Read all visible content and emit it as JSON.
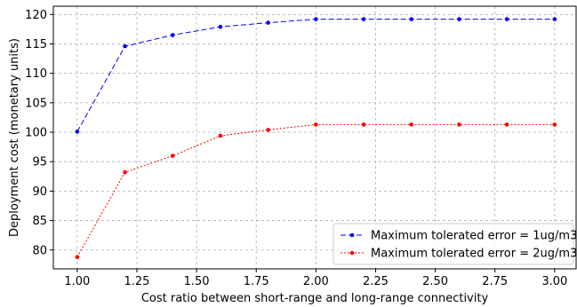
{
  "chart_data": {
    "type": "line",
    "title": "",
    "xlabel": "Cost ratio between short-range and long-range connectivity",
    "ylabel": "Deployment cost (monetary units)",
    "xlim": [
      0.9,
      3.09
    ],
    "ylim": [
      76.8,
      121.4
    ],
    "xticks": [
      1.0,
      1.25,
      1.5,
      1.75,
      2.0,
      2.25,
      2.5,
      2.75,
      3.0
    ],
    "xtick_labels": [
      "1.00",
      "1.25",
      "1.50",
      "1.75",
      "2.00",
      "2.25",
      "2.50",
      "2.75",
      "3.00"
    ],
    "yticks": [
      80,
      85,
      90,
      95,
      100,
      105,
      110,
      115,
      120
    ],
    "ytick_labels": [
      "80",
      "85",
      "90",
      "95",
      "100",
      "105",
      "110",
      "115",
      "120"
    ],
    "grid": true,
    "legend_position": "lower-right",
    "x": [
      1.0,
      1.2,
      1.4,
      1.6,
      1.8,
      2.0,
      2.2,
      2.4,
      2.6,
      2.8,
      3.0
    ],
    "series": [
      {
        "name": "Maximum tolerated error = 1ug/m3",
        "color": "#0000ff",
        "line_style": "dashed",
        "values": [
          100.1,
          114.6,
          116.5,
          117.9,
          118.6,
          119.2,
          119.2,
          119.2,
          119.2,
          119.2,
          119.2
        ]
      },
      {
        "name": "Maximum tolerated error = 2ug/m3",
        "color": "#ff0000",
        "line_style": "dotted",
        "values": [
          78.8,
          93.2,
          96.0,
          99.4,
          100.4,
          101.3,
          101.3,
          101.3,
          101.3,
          101.3,
          101.3
        ]
      }
    ]
  }
}
